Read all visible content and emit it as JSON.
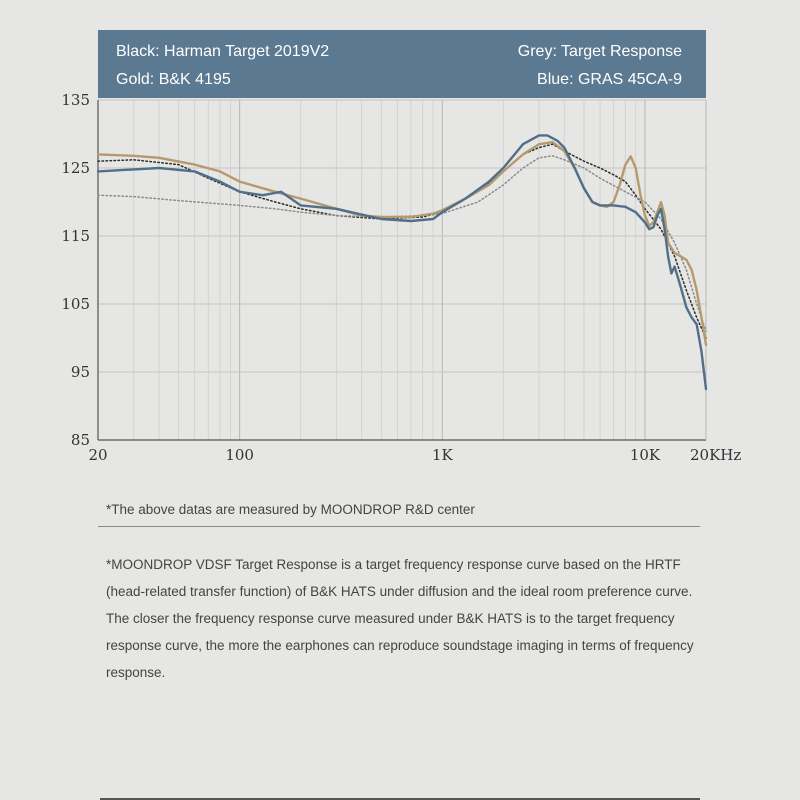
{
  "legend": {
    "top_left": "Black: Harman Target 2019V2",
    "bottom_left": "Gold: B&K 4195",
    "top_right": "Grey: Target Response",
    "bottom_right": "Blue: GRAS 45CA-9"
  },
  "note": "*The above datas are measured by MOONDROP R&D center",
  "description": "*MOONDROP VDSF Target Response is a target frequency response curve based on the HRTF (head-related transfer function) of B&K HATS under diffusion and the ideal room preference curve. The closer the frequency response curve measured under B&K HATS is to the target frequency response curve, the more the earphones can reproduce soundstage imaging in terms of frequency response.",
  "colors": {
    "background": "#e6e6e4",
    "legend_bg": "#5b7a92",
    "black": "#2b2b2b",
    "gold": "#b49a6e",
    "grey": "#8c8c8c",
    "blue": "#526f8a"
  },
  "chart_data": {
    "type": "line",
    "x_scale": "log",
    "xlim": [
      20,
      20000
    ],
    "ylim": [
      85,
      135
    ],
    "x_ticks": [
      {
        "value": 20,
        "label": "20"
      },
      {
        "value": 100,
        "label": "100"
      },
      {
        "value": 1000,
        "label": "1K"
      },
      {
        "value": 10000,
        "label": "10K"
      },
      {
        "value": 20000,
        "label": "20KHz"
      }
    ],
    "y_ticks": [
      {
        "value": 135,
        "label": "135"
      },
      {
        "value": 125,
        "label": "125"
      },
      {
        "value": 115,
        "label": "115"
      },
      {
        "value": 105,
        "label": "105"
      },
      {
        "value": 95,
        "label": "95"
      },
      {
        "value": 85,
        "label": "85"
      }
    ],
    "grid": true,
    "series": [
      {
        "name": "Harman Target 2019V2",
        "color_key": "black",
        "style": "dotted",
        "points": [
          [
            20,
            126
          ],
          [
            30,
            126.2
          ],
          [
            50,
            125.5
          ],
          [
            70,
            123.5
          ],
          [
            100,
            121.5
          ],
          [
            150,
            120
          ],
          [
            200,
            119
          ],
          [
            300,
            118
          ],
          [
            500,
            117.5
          ],
          [
            800,
            117.8
          ],
          [
            1000,
            118.5
          ],
          [
            1500,
            121.5
          ],
          [
            2000,
            124.5
          ],
          [
            2500,
            127
          ],
          [
            3000,
            128
          ],
          [
            3500,
            128.5
          ],
          [
            4000,
            127.5
          ],
          [
            5000,
            126
          ],
          [
            6000,
            125
          ],
          [
            7000,
            124
          ],
          [
            8000,
            123
          ],
          [
            9000,
            121
          ],
          [
            10000,
            119
          ],
          [
            12000,
            116
          ],
          [
            14000,
            112
          ],
          [
            16000,
            107
          ],
          [
            18000,
            103
          ],
          [
            20000,
            100
          ]
        ]
      },
      {
        "name": "Target Response",
        "color_key": "grey",
        "style": "dotted",
        "points": [
          [
            20,
            121
          ],
          [
            30,
            120.8
          ],
          [
            50,
            120.2
          ],
          [
            100,
            119.5
          ],
          [
            150,
            119
          ],
          [
            200,
            118.5
          ],
          [
            300,
            118
          ],
          [
            500,
            117.8
          ],
          [
            800,
            118
          ],
          [
            1000,
            118.3
          ],
          [
            1500,
            120
          ],
          [
            2000,
            122.5
          ],
          [
            2500,
            125
          ],
          [
            3000,
            126.5
          ],
          [
            3500,
            126.8
          ],
          [
            4000,
            126.2
          ],
          [
            5000,
            125
          ],
          [
            6000,
            123.5
          ],
          [
            8000,
            121.5
          ],
          [
            10000,
            120
          ],
          [
            12000,
            117.5
          ],
          [
            14000,
            114
          ],
          [
            16000,
            110
          ],
          [
            18000,
            105
          ],
          [
            20000,
            101
          ]
        ]
      },
      {
        "name": "B&K 4195",
        "color_key": "gold",
        "style": "solid",
        "points": [
          [
            20,
            127
          ],
          [
            30,
            126.8
          ],
          [
            40,
            126.5
          ],
          [
            60,
            125.5
          ],
          [
            80,
            124.5
          ],
          [
            100,
            123
          ],
          [
            150,
            121.5
          ],
          [
            200,
            120.5
          ],
          [
            300,
            119
          ],
          [
            400,
            118
          ],
          [
            500,
            117.8
          ],
          [
            700,
            117.8
          ],
          [
            900,
            118.3
          ],
          [
            1000,
            118.8
          ],
          [
            1300,
            120.5
          ],
          [
            1700,
            122.5
          ],
          [
            2000,
            124.5
          ],
          [
            2500,
            127
          ],
          [
            3000,
            128.5
          ],
          [
            3500,
            128.8
          ],
          [
            4000,
            127.5
          ],
          [
            4500,
            125
          ],
          [
            5000,
            122
          ],
          [
            5500,
            120
          ],
          [
            6000,
            119.5
          ],
          [
            6500,
            119.3
          ],
          [
            7000,
            120
          ],
          [
            7500,
            122.5
          ],
          [
            8000,
            125.5
          ],
          [
            8500,
            126.7
          ],
          [
            9000,
            125
          ],
          [
            9500,
            121
          ],
          [
            10000,
            118
          ],
          [
            10500,
            116.5
          ],
          [
            11000,
            117
          ],
          [
            11500,
            118.5
          ],
          [
            12000,
            120
          ],
          [
            12500,
            118
          ],
          [
            13000,
            114
          ],
          [
            14000,
            112.5
          ],
          [
            15000,
            112
          ],
          [
            16000,
            111.5
          ],
          [
            17000,
            110
          ],
          [
            18000,
            107
          ],
          [
            19000,
            103
          ],
          [
            20000,
            99
          ]
        ]
      },
      {
        "name": "GRAS 45CA-9",
        "color_key": "blue",
        "style": "solid",
        "points": [
          [
            20,
            124.5
          ],
          [
            30,
            124.8
          ],
          [
            40,
            125
          ],
          [
            60,
            124.5
          ],
          [
            80,
            123
          ],
          [
            100,
            121.5
          ],
          [
            130,
            121
          ],
          [
            160,
            121.5
          ],
          [
            200,
            119.5
          ],
          [
            300,
            119
          ],
          [
            500,
            117.5
          ],
          [
            700,
            117.2
          ],
          [
            900,
            117.5
          ],
          [
            1000,
            118.5
          ],
          [
            1300,
            120.5
          ],
          [
            1700,
            123
          ],
          [
            2000,
            125
          ],
          [
            2500,
            128.5
          ],
          [
            3000,
            129.8
          ],
          [
            3300,
            129.8
          ],
          [
            3700,
            129
          ],
          [
            4000,
            128
          ],
          [
            4500,
            125
          ],
          [
            5000,
            122
          ],
          [
            5500,
            120
          ],
          [
            6000,
            119.5
          ],
          [
            7000,
            119.5
          ],
          [
            8000,
            119.3
          ],
          [
            9000,
            118.5
          ],
          [
            10000,
            117
          ],
          [
            10500,
            116
          ],
          [
            11000,
            116.3
          ],
          [
            11500,
            118
          ],
          [
            12000,
            119
          ],
          [
            12500,
            116
          ],
          [
            13000,
            112
          ],
          [
            13500,
            109.5
          ],
          [
            14000,
            110.5
          ],
          [
            14500,
            109
          ],
          [
            15000,
            107.5
          ],
          [
            16000,
            104.5
          ],
          [
            17000,
            103
          ],
          [
            18000,
            102
          ],
          [
            19000,
            98
          ],
          [
            20000,
            92.5
          ]
        ]
      }
    ]
  }
}
